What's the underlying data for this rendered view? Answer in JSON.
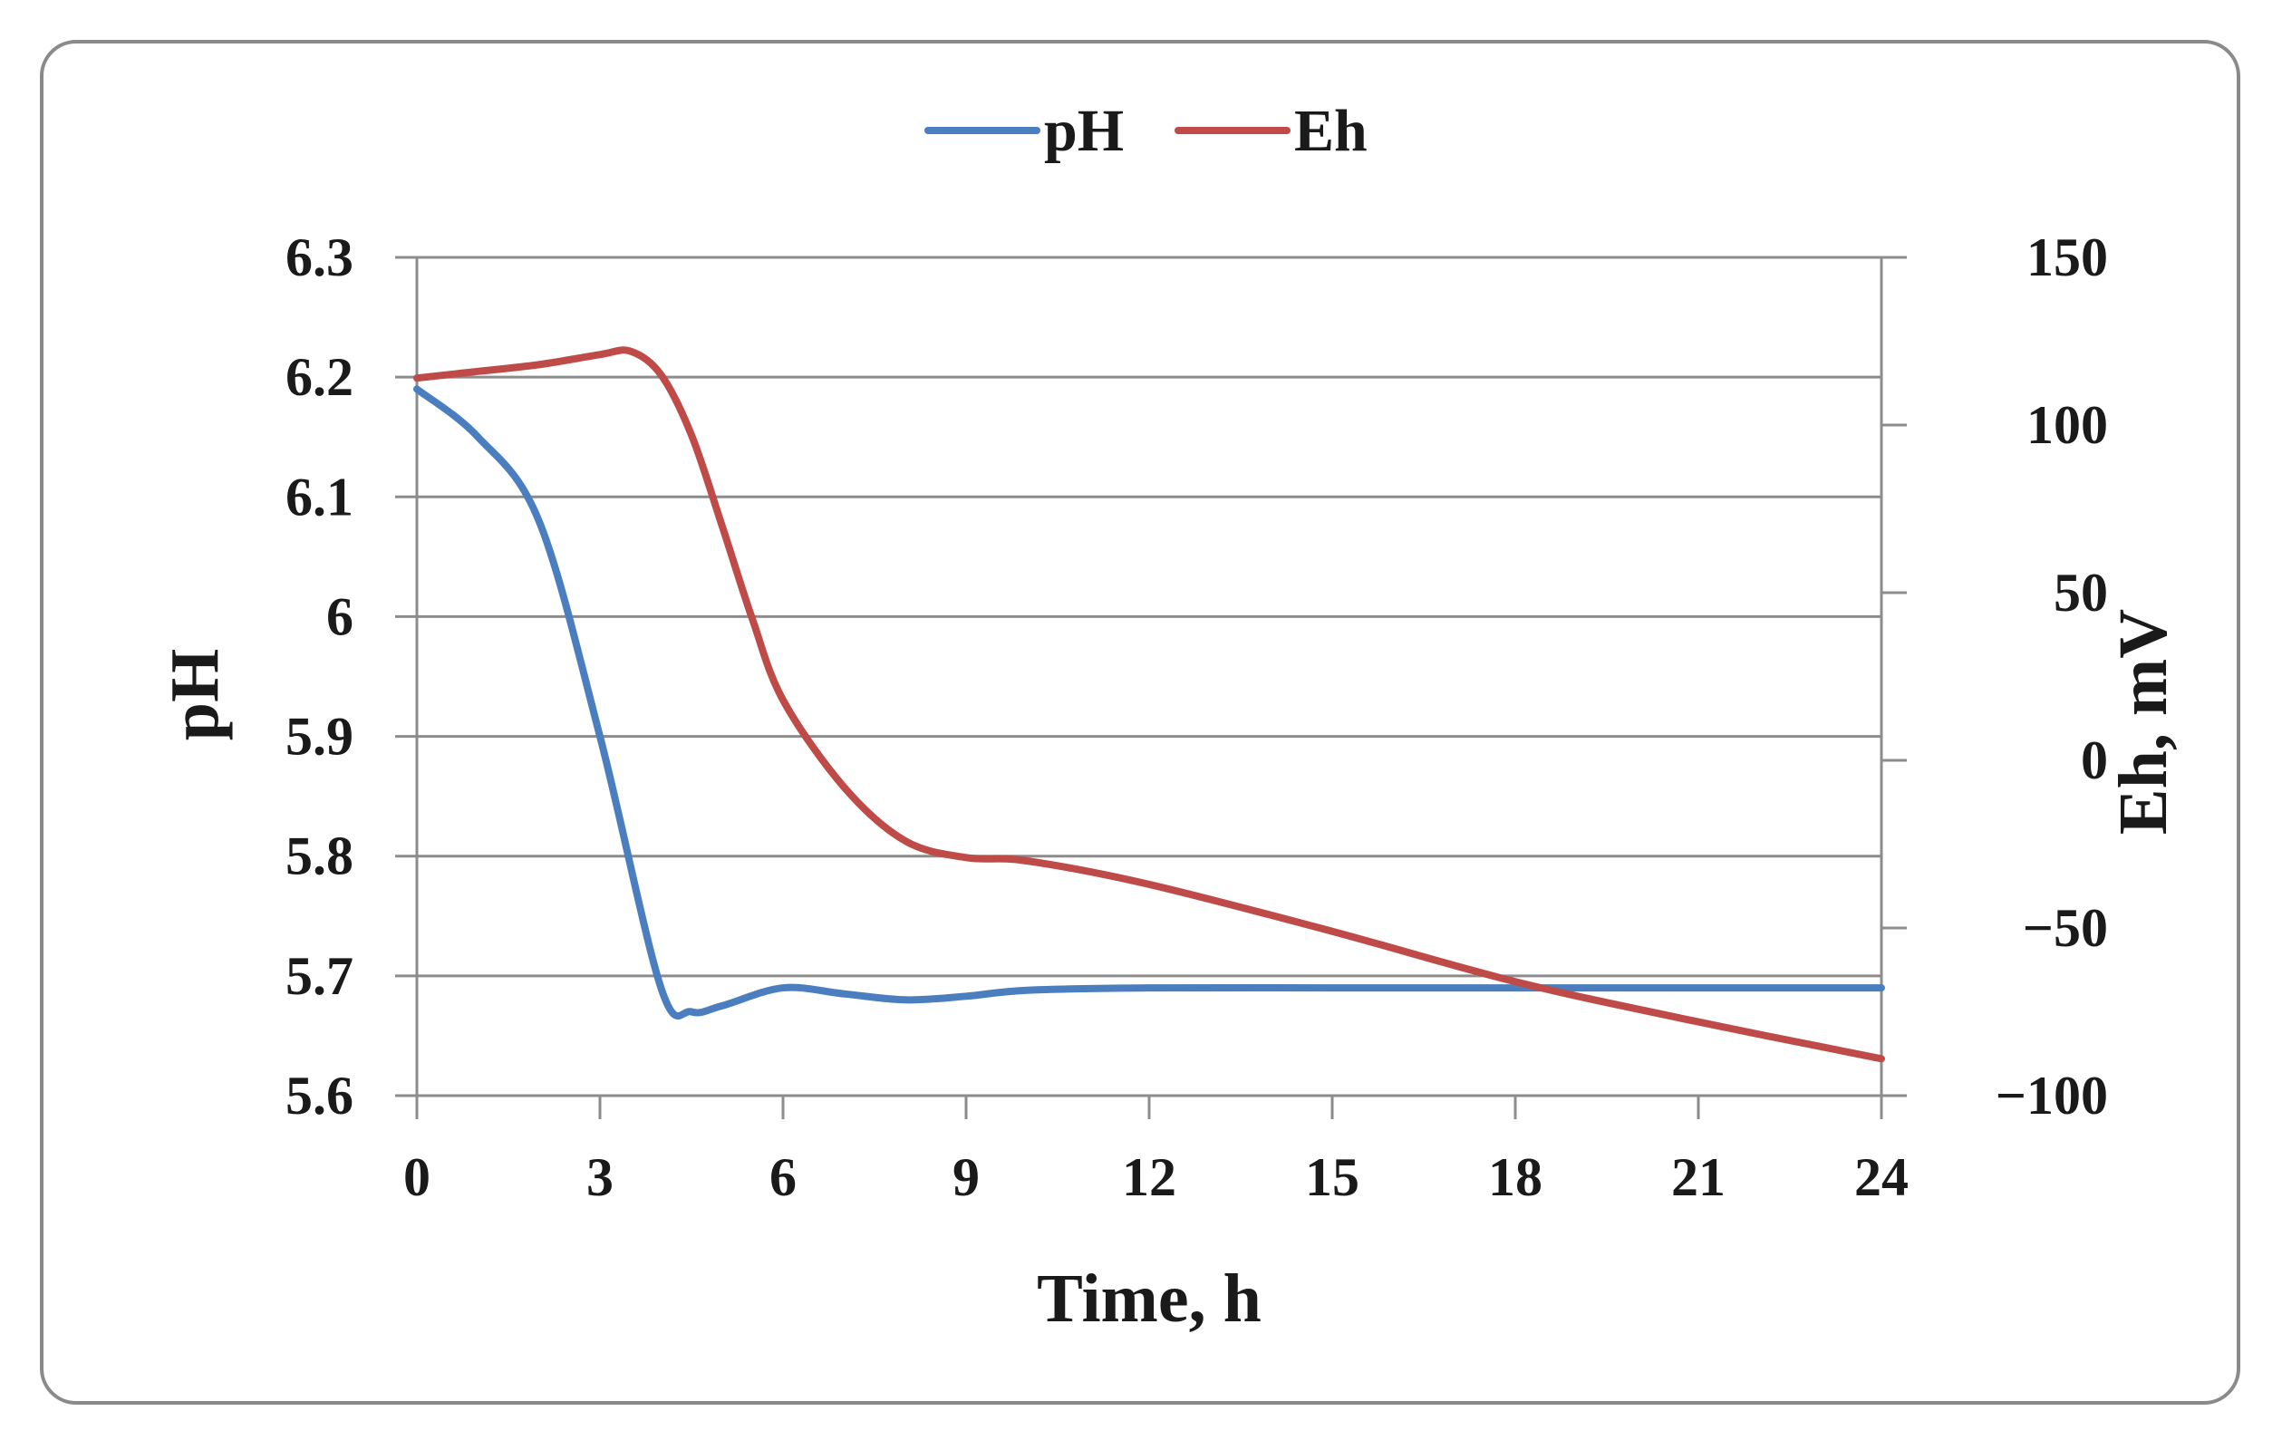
{
  "chart_data": {
    "type": "line",
    "title": "",
    "xlabel": "Time, h",
    "ylabel": "pH",
    "y2label": "Eh, mV",
    "xlim": [
      0,
      24
    ],
    "ylim": [
      5.6,
      6.3
    ],
    "y2lim": [
      -100,
      150
    ],
    "x_ticks": [
      "0",
      "3",
      "6",
      "9",
      "12",
      "15",
      "18",
      "21",
      "24"
    ],
    "y_ticks": [
      "5.6",
      "5.7",
      "5.8",
      "5.9",
      "6",
      "6.1",
      "6.2",
      "6.3"
    ],
    "y2_ticks": [
      "−100",
      "−50",
      "0",
      "50",
      "100",
      "150"
    ],
    "grid": true,
    "legend_position": "top-center",
    "series": [
      {
        "name": "pH",
        "axis": "left",
        "color": "#4a7ebf",
        "x": [
          0,
          1,
          2,
          3,
          4,
          4.5,
          5,
          6,
          7,
          8,
          9,
          10,
          12,
          15,
          18,
          21,
          24
        ],
        "values": [
          6.19,
          6.15,
          6.08,
          5.9,
          5.69,
          5.67,
          5.675,
          5.69,
          5.685,
          5.68,
          5.683,
          5.688,
          5.69,
          5.69,
          5.69,
          5.69,
          5.69
        ]
      },
      {
        "name": "Eh",
        "axis": "right",
        "color": "#be4b48",
        "x": [
          0,
          1,
          2,
          3,
          3.5,
          4,
          4.5,
          5,
          5.5,
          6,
          7,
          8,
          9,
          10,
          12,
          15,
          18,
          21,
          24
        ],
        "values": [
          114,
          116,
          118,
          121,
          122,
          115,
          97,
          70,
          42,
          18,
          -8,
          -24,
          -29,
          -30,
          -37,
          -51,
          -66,
          -78,
          -89
        ]
      }
    ]
  }
}
